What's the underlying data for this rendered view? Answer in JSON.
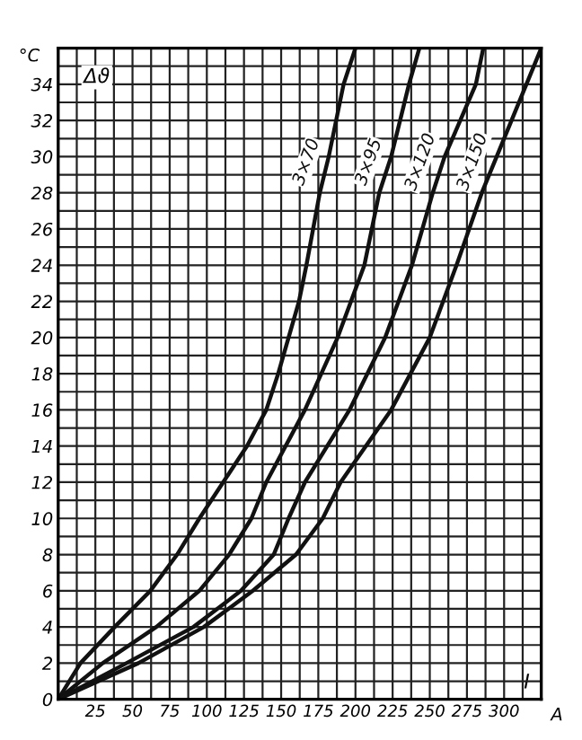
{
  "chart_data": {
    "type": "line",
    "ylabel": "Δϑ",
    "xlabel": "I",
    "annotations": [
      "°C",
      "A"
    ],
    "series": [
      {
        "name": "3×70",
        "color": "#111111",
        "x": [
          0,
          15,
          38,
          62,
          80,
          95,
          111,
          127,
          140,
          148,
          155,
          162,
          167,
          176,
          182,
          192,
          200
        ],
        "values": [
          0,
          2,
          4,
          6,
          8,
          10,
          12,
          14,
          16,
          18,
          20,
          22,
          24,
          28,
          30,
          34,
          36
        ]
      },
      {
        "name": "3×95",
        "color": "#111111",
        "x": [
          0,
          30,
          66,
          95,
          115,
          130,
          140,
          166,
          188,
          206,
          216,
          224,
          236,
          243
        ],
        "values": [
          0,
          2,
          4,
          6,
          8,
          10,
          12,
          16,
          20,
          24,
          28,
          30,
          34,
          36
        ]
      },
      {
        "name": "3×120",
        "color": "#111111",
        "x": [
          0,
          46,
          91,
          123,
          145,
          155,
          166,
          196,
          220,
          238,
          252,
          260,
          281,
          286
        ],
        "values": [
          0,
          2,
          4,
          6,
          8,
          10,
          12,
          16,
          20,
          24,
          28,
          30,
          34,
          36
        ]
      },
      {
        "name": "3×150",
        "color": "#111111",
        "x": [
          0,
          54,
          98,
          131,
          160,
          178,
          190,
          224,
          250,
          268,
          285,
          295,
          315,
          325
        ],
        "values": [
          0,
          2,
          4,
          6,
          8,
          10,
          12,
          16,
          20,
          24,
          28,
          30,
          34,
          36
        ]
      }
    ],
    "xlim": [
      0,
      325
    ],
    "ylim": [
      0,
      36
    ],
    "xticks": [
      {
        "value": 0,
        "label": null
      },
      {
        "value": 12.5,
        "label": null
      },
      25,
      {
        "value": 37.5,
        "label": null
      },
      50,
      {
        "value": 62.5,
        "label": null
      },
      75,
      {
        "value": 87.5,
        "label": null
      },
      100,
      {
        "value": 112.5,
        "label": null
      },
      125,
      {
        "value": 137.5,
        "label": null
      },
      150,
      {
        "value": 162.5,
        "label": null
      },
      175,
      {
        "value": 187.5,
        "label": null
      },
      200,
      {
        "value": 212.5,
        "label": null
      },
      225,
      {
        "value": 237.5,
        "label": null
      },
      250,
      {
        "value": 262.5,
        "label": null
      },
      275,
      {
        "value": 287.5,
        "label": null
      },
      300,
      {
        "value": 312.5,
        "label": null
      }
    ],
    "yticks": [
      0,
      {
        "value": 1,
        "label": null
      },
      2,
      {
        "value": 3,
        "label": null
      },
      4,
      {
        "value": 5,
        "label": null
      },
      6,
      {
        "value": 7,
        "label": null
      },
      8,
      {
        "value": 9,
        "label": null
      },
      10,
      {
        "value": 11,
        "label": null
      },
      12,
      {
        "value": 13,
        "label": null
      },
      14,
      {
        "value": 15,
        "label": null
      },
      16,
      {
        "value": 17,
        "label": null
      },
      18,
      {
        "value": 19,
        "label": null
      },
      20,
      {
        "value": 21,
        "label": null
      },
      22,
      {
        "value": 23,
        "label": null
      },
      24,
      {
        "value": 25,
        "label": null
      },
      26,
      {
        "value": 27,
        "label": null
      },
      28,
      {
        "value": 29,
        "label": null
      },
      30,
      {
        "value": 31,
        "label": null
      },
      32,
      {
        "value": 33,
        "label": null
      },
      34,
      {
        "value": 35,
        "label": null
      }
    ],
    "grid": true,
    "legend": false,
    "marker": "none",
    "line_style": "solid"
  }
}
